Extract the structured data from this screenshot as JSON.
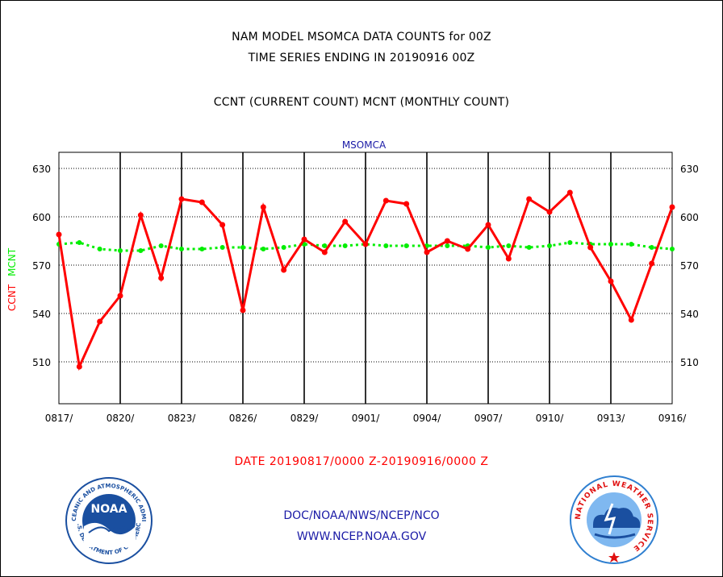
{
  "header": {
    "title_line1": "NAM MODEL MSOMCA DATA COUNTS for 00Z",
    "title_line2": "TIME SERIES ENDING IN 20190916 00Z",
    "subtitle": "CCNT (CURRENT COUNT) MCNT (MONTHLY COUNT)"
  },
  "footer": {
    "date_range": "DATE 20190817/0000 Z-20190916/0000 Z",
    "org_path": "DOC/NOAA/NWS/NCEP/NCO",
    "website": "WWW.NCEP.NOAA.GOV"
  },
  "logos": {
    "noaa_text": "NOAA",
    "noaa_ring_top": "NATIONAL OCEANIC AND ATMOSPHERIC ADMINISTRATION",
    "noaa_ring_bottom": "U.S. DEPARTMENT OF COMMERCE",
    "nws_ring": "NATIONAL WEATHER SERVICE"
  },
  "colors": {
    "ccnt": "#ff0000",
    "mcnt": "#00ee00",
    "title_blue": "#1a1aa6",
    "noaa_blue": "#1a4fa0",
    "nws_blue": "#2f7fd0"
  },
  "chart_data": {
    "type": "line",
    "title": "MSOMCA",
    "ylabel_left": [
      "CCNT",
      "MCNT"
    ],
    "ylim": [
      484,
      640
    ],
    "yticks": [
      510,
      540,
      570,
      600,
      630
    ],
    "x_tick_labels": [
      "0817/",
      "0820/",
      "0823/",
      "0826/",
      "0829/",
      "0901/",
      "0904/",
      "0907/",
      "0910/",
      "0913/",
      "0916/"
    ],
    "x_tick_positions": [
      0,
      3,
      6,
      9,
      12,
      15,
      18,
      21,
      24,
      27,
      30
    ],
    "grid": true,
    "series": [
      {
        "name": "CCNT",
        "values": [
          589,
          507,
          535,
          551,
          601,
          562,
          611,
          609,
          595,
          542,
          606,
          567,
          586,
          578,
          597,
          583,
          610,
          608,
          578,
          585,
          580,
          595,
          574,
          611,
          603,
          615,
          581,
          560,
          536,
          571,
          606
        ]
      },
      {
        "name": "MCNT",
        "values": [
          583,
          584,
          580,
          579,
          579,
          582,
          580,
          580,
          581,
          581,
          580,
          581,
          583,
          582,
          582,
          583,
          582,
          582,
          582,
          582,
          582,
          581,
          582,
          581,
          582,
          584,
          583,
          583,
          583,
          581,
          580
        ]
      }
    ]
  }
}
